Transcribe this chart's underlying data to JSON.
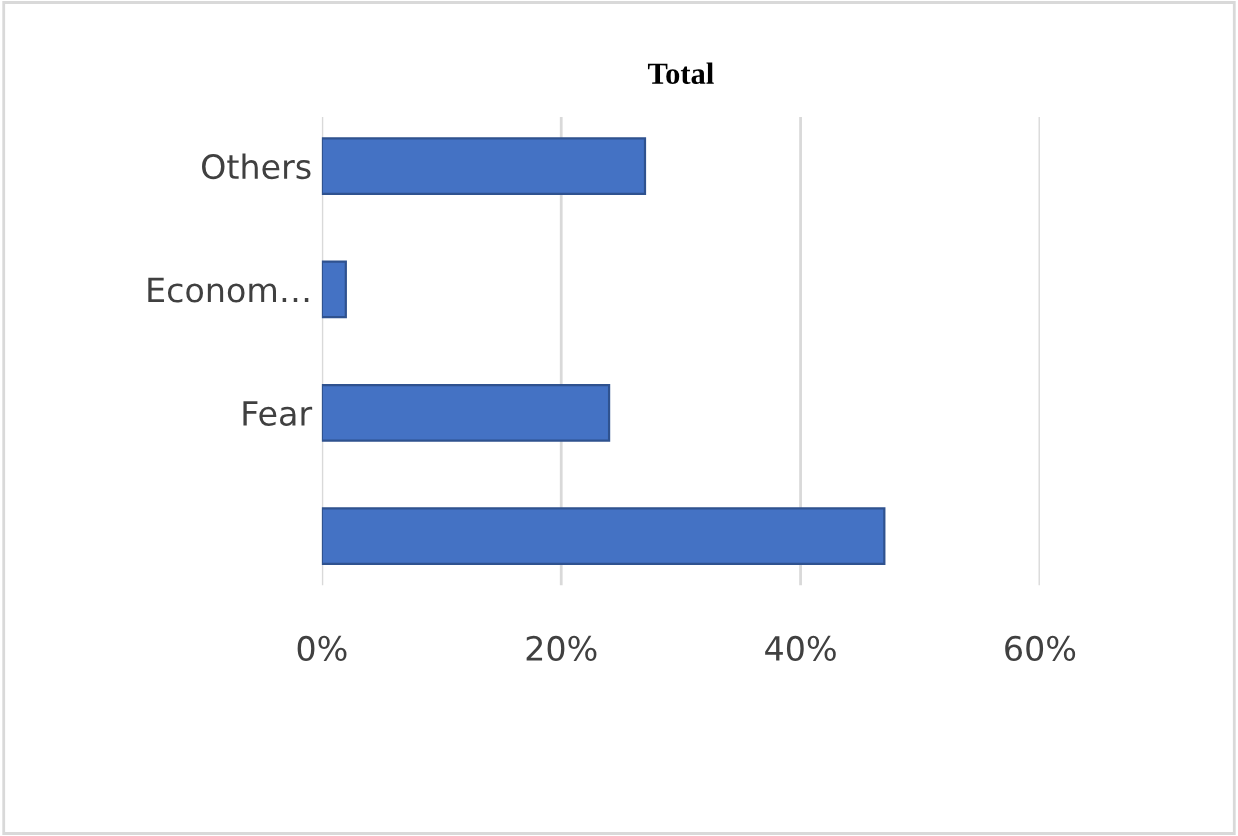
{
  "chart_data": {
    "type": "bar",
    "orientation": "horizontal",
    "title": "Total",
    "categories": [
      "Others",
      "Econom…",
      "Fear",
      null
    ],
    "values": [
      27,
      2,
      24,
      47
    ],
    "color": "#4472c4",
    "xlim": [
      0,
      60
    ],
    "xticks": [
      {
        "value": 0,
        "label": "0%"
      },
      {
        "value": 20,
        "label": "20%"
      },
      {
        "value": 40,
        "label": "40%"
      },
      {
        "value": 60,
        "label": "60%"
      }
    ],
    "grid": "x"
  }
}
